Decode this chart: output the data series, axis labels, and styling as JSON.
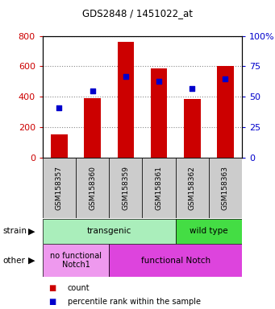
{
  "title": "GDS2848 / 1451022_at",
  "samples": [
    "GSM158357",
    "GSM158360",
    "GSM158359",
    "GSM158361",
    "GSM158362",
    "GSM158363"
  ],
  "counts": [
    155,
    390,
    760,
    585,
    385,
    600
  ],
  "percentiles": [
    41,
    55,
    67,
    63,
    57,
    65
  ],
  "ylim_left": [
    0,
    800
  ],
  "ylim_right": [
    0,
    100
  ],
  "yticks_left": [
    0,
    200,
    400,
    600,
    800
  ],
  "yticks_right": [
    0,
    25,
    50,
    75,
    100
  ],
  "bar_color": "#cc0000",
  "dot_color": "#0000cc",
  "strain_transgenic_color": "#aaeebb",
  "strain_wildtype_color": "#44dd44",
  "other_nofunc_color": "#ee99ee",
  "other_func_color": "#dd44dd",
  "tick_label_color_left": "#cc0000",
  "tick_label_color_right": "#0000cc",
  "grid_color": "#888888",
  "background_color": "#ffffff",
  "xtick_bg_color": "#cccccc"
}
